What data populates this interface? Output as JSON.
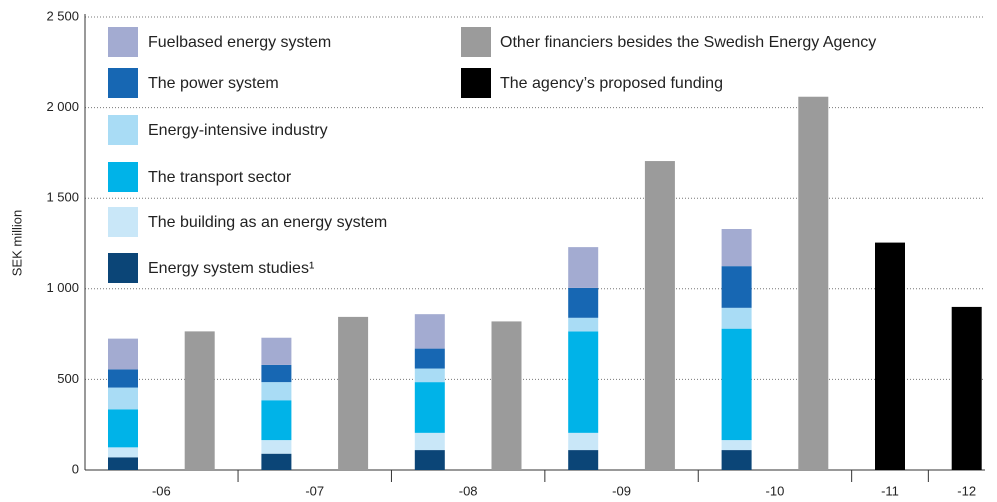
{
  "chart_data": {
    "type": "bar",
    "y_label": "SEK million",
    "categories": [
      "-06",
      "-07",
      "-08",
      "-09",
      "-10",
      "-11",
      "-12"
    ],
    "series": [
      {
        "name": "Energy system studies¹",
        "color": "#0b4577",
        "stack": "agency",
        "values": [
          70,
          90,
          110,
          110,
          110,
          null,
          null
        ]
      },
      {
        "name": "The building as an energy system",
        "color": "#c9e7f8",
        "stack": "agency",
        "values": [
          55,
          75,
          95,
          95,
          55,
          null,
          null
        ]
      },
      {
        "name": "The transport sector",
        "color": "#00b3e8",
        "stack": "agency",
        "values": [
          210,
          220,
          280,
          560,
          615,
          null,
          null
        ]
      },
      {
        "name": "Energy-intensive industry",
        "color": "#a9dcf5",
        "stack": "agency",
        "values": [
          120,
          100,
          75,
          75,
          115,
          null,
          null
        ]
      },
      {
        "name": "The power system",
        "color": "#1767b3",
        "stack": "agency",
        "values": [
          100,
          95,
          110,
          165,
          230,
          null,
          null
        ]
      },
      {
        "name": "Fuelbased energy system",
        "color": "#a3abd1",
        "stack": "agency",
        "values": [
          170,
          150,
          190,
          225,
          205,
          null,
          null
        ]
      },
      {
        "name": "Other financiers besides the Swedish Energy Agency",
        "color": "#9b9b9b",
        "values": [
          765,
          845,
          820,
          1705,
          2060,
          null,
          null
        ]
      },
      {
        "name": "The agency’s proposed funding",
        "color": "#000000",
        "values": [
          null,
          null,
          null,
          null,
          null,
          1255,
          900
        ]
      }
    ],
    "ylim": [
      0,
      2500
    ],
    "yticks": [
      0,
      500,
      {
        "value": 1000,
        "label": "1 000"
      },
      {
        "value": 1500,
        "label": "1 500"
      },
      {
        "value": 2000,
        "label": "2 000"
      },
      {
        "value": 2500,
        "label": "2 500"
      }
    ],
    "grid": true
  }
}
